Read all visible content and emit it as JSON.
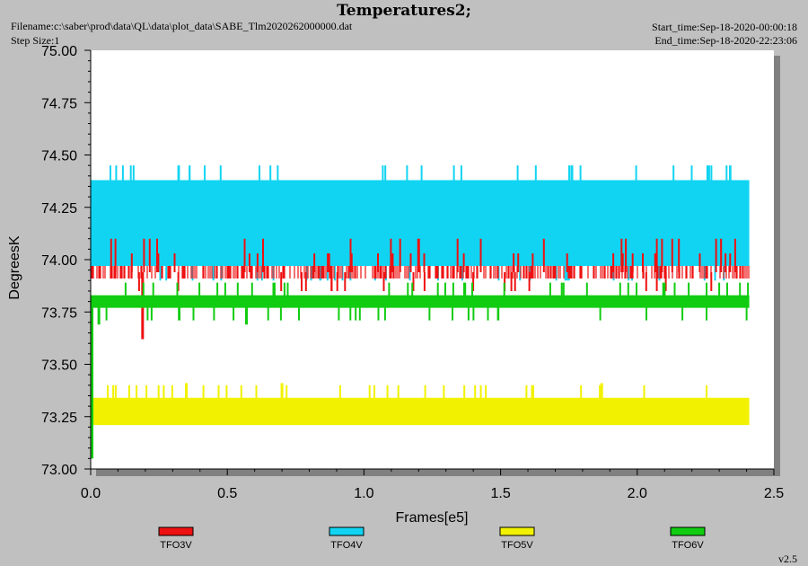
{
  "header": {
    "title": "Temperatures2;",
    "filename": "Filename:c:\\saber\\prod\\data\\QL\\data\\plot_data\\SABE_Tlm2020262000000.dat",
    "step_size": "Step Size:1",
    "start_time": "Start_time:Sep-18-2020-00:00:18",
    "end_time": "End_time:Sep-18-2020-22:23:06"
  },
  "footer": {
    "version": "v2.5"
  },
  "colors": {
    "background": "#c0c0c0",
    "plot_area": "#ffffff",
    "shadow": "#808080",
    "TFO3V": "#ee1111",
    "TFO4V": "#11d4f2",
    "TFO5V": "#f2f200",
    "TFO6V": "#11cc11"
  },
  "chart_data": {
    "type": "line",
    "title": "Temperatures2;",
    "xlabel": "Frames[e5]",
    "ylabel": "DegreesK",
    "xlim": [
      0.0,
      2.5
    ],
    "ylim": [
      73.0,
      75.0
    ],
    "xticks": [
      0.0,
      0.5,
      1.0,
      1.5,
      2.0,
      2.5
    ],
    "xtick_labels": [
      "0.0",
      "0.5",
      "1.0",
      "1.5",
      "2.0",
      "2.5"
    ],
    "yticks": [
      73.0,
      73.25,
      73.5,
      73.75,
      74.0,
      74.25,
      74.5,
      74.75,
      75.0
    ],
    "ytick_labels": [
      "73.00",
      "73.25",
      "73.50",
      "73.75",
      "74.00",
      "74.25",
      "74.50",
      "74.75",
      "75.00"
    ],
    "grid": false,
    "legend_position": "bottom",
    "series": [
      {
        "name": "TFO3V",
        "color": "#ee1111",
        "x_range": [
          0.0,
          2.41
        ],
        "band": [
          73.91,
          73.97
        ],
        "spike_values": [
          73.85,
          74.03,
          74.1
        ],
        "outliers": [
          {
            "x": 0.19,
            "y": 73.62
          },
          {
            "x": 1.2,
            "y": 74.1
          }
        ]
      },
      {
        "name": "TFO4V",
        "color": "#11d4f2",
        "x_range": [
          0.0,
          2.41
        ],
        "band": [
          73.97,
          74.38
        ],
        "spike_values": [
          73.9,
          74.45
        ],
        "outliers": []
      },
      {
        "name": "TFO5V",
        "color": "#f2f200",
        "x_range": [
          0.0,
          2.41
        ],
        "band": [
          73.21,
          73.34
        ],
        "spike_values": [
          73.28,
          73.4
        ],
        "outliers": [
          {
            "x": 0.35,
            "y": 73.41
          },
          {
            "x": 0.7,
            "y": 73.41
          },
          {
            "x": 1.87,
            "y": 73.41
          }
        ]
      },
      {
        "name": "TFO6V",
        "color": "#11cc11",
        "x_range": [
          0.0,
          2.41
        ],
        "band": [
          73.77,
          73.83
        ],
        "spike_values": [
          73.71,
          73.89
        ],
        "outliers": [
          {
            "x": 0.005,
            "y": 73.05
          },
          {
            "x": 0.03,
            "y": 73.69
          },
          {
            "x": 0.57,
            "y": 73.69
          }
        ]
      }
    ]
  }
}
